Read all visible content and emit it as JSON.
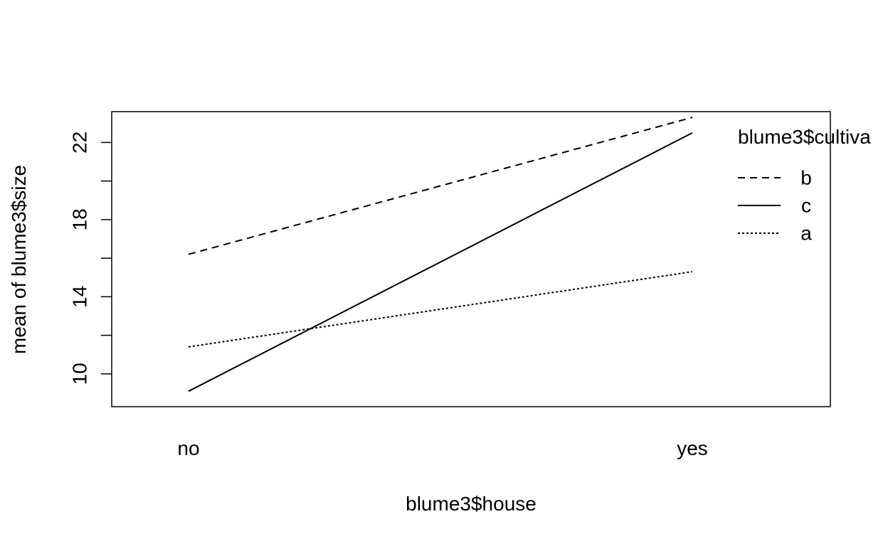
{
  "chart_data": {
    "type": "line",
    "title": "",
    "xlabel": "blume3$house",
    "ylabel": "mean of  blume3$size",
    "categories": [
      "no",
      "yes"
    ],
    "yticks": [
      "10",
      "14",
      "18",
      "22"
    ],
    "ylim": [
      8.3,
      23.6
    ],
    "grid": false,
    "legend": {
      "title": "blume3$cultiva",
      "placement": "top-right",
      "entries": [
        "b",
        "c",
        "a"
      ]
    },
    "series": [
      {
        "name": "b",
        "linestyle": "dashed",
        "values": [
          16.2,
          23.3
        ]
      },
      {
        "name": "c",
        "linestyle": "solid",
        "values": [
          9.1,
          22.5
        ]
      },
      {
        "name": "a",
        "linestyle": "dotted",
        "values": [
          11.4,
          15.3
        ]
      }
    ]
  }
}
